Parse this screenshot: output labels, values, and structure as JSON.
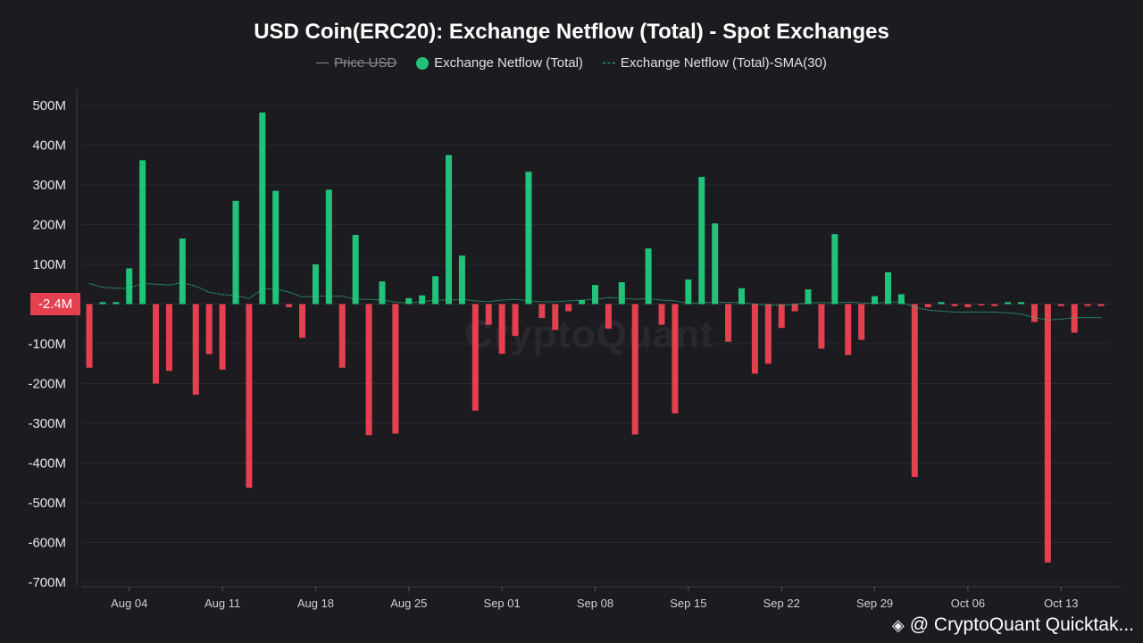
{
  "chart_data": {
    "type": "bar",
    "title": "USD Coin(ERC20): Exchange Netflow (Total) - Spot Exchanges",
    "legend": [
      {
        "name": "Price USD",
        "enabled": false,
        "style": "line",
        "color": "#8c8c8c"
      },
      {
        "name": "Exchange Netflow (Total)",
        "enabled": true,
        "style": "dot",
        "color": "#22c27a"
      },
      {
        "name": "Exchange Netflow (Total)-SMA(30)",
        "enabled": true,
        "style": "dashed-line",
        "color": "#2fbf7f"
      }
    ],
    "ylim": [
      -700,
      500
    ],
    "yunit": "M",
    "y_ticks": [
      "500M",
      "400M",
      "300M",
      "200M",
      "100M",
      "",
      "-100M",
      "-200M",
      "-300M",
      "-400M",
      "-500M",
      "-600M",
      "-700M"
    ],
    "y_tick_values": [
      500,
      400,
      300,
      200,
      100,
      0,
      -100,
      -200,
      -300,
      -400,
      -500,
      -600,
      -700
    ],
    "current_value_label": "-2.4M",
    "x_ticks": [
      {
        "label": "Aug 04",
        "index": 3
      },
      {
        "label": "Aug 11",
        "index": 10
      },
      {
        "label": "Aug 18",
        "index": 17
      },
      {
        "label": "Aug 25",
        "index": 24
      },
      {
        "label": "Sep 01",
        "index": 31
      },
      {
        "label": "Sep 08",
        "index": 38
      },
      {
        "label": "Sep 15",
        "index": 45
      },
      {
        "label": "Sep 22",
        "index": 52
      },
      {
        "label": "Sep 29",
        "index": 59
      },
      {
        "label": "Oct 06",
        "index": 66
      },
      {
        "label": "Oct 13",
        "index": 73
      }
    ],
    "values": [
      -160,
      5,
      5,
      90,
      362,
      -200,
      -168,
      165,
      -228,
      -126,
      -165,
      260,
      -462,
      482,
      285,
      -8,
      -85,
      100,
      288,
      -160,
      174,
      -330,
      57,
      -326,
      15,
      22,
      70,
      375,
      122,
      -268,
      -52,
      -125,
      -80,
      333,
      -35,
      -65,
      -18,
      10,
      48,
      -62,
      55,
      -328,
      140,
      -52,
      -275,
      62,
      320,
      203,
      -95,
      40,
      -175,
      -150,
      -60,
      -18,
      37,
      -112,
      176,
      -128,
      -90,
      20,
      80,
      25,
      -435,
      -8,
      5,
      -5,
      -8,
      -3,
      -5,
      5,
      5,
      -45,
      -650,
      -5,
      -72,
      -5,
      -5
    ],
    "sma": [
      52,
      42,
      40,
      40,
      52,
      50,
      48,
      54,
      45,
      30,
      24,
      22,
      14,
      38,
      38,
      30,
      18,
      20,
      20,
      20,
      12,
      12,
      10,
      5,
      3,
      6,
      10,
      10,
      12,
      8,
      6,
      10,
      12,
      8,
      6,
      6,
      8,
      10,
      12,
      16,
      15,
      12,
      14,
      10,
      8,
      2,
      3,
      5,
      4,
      4,
      0,
      -2,
      -4,
      0,
      3,
      4,
      3,
      5,
      3,
      2,
      5,
      5,
      -8,
      -15,
      -18,
      -20,
      -20,
      -20,
      -20,
      -22,
      -25,
      -34,
      -40,
      -38,
      -34,
      -34,
      -34
    ],
    "colors": {
      "positive": "#22c27a",
      "negative": "#e3414f",
      "sma": "#2fbf7f"
    }
  },
  "watermark": {
    "icon": "binance-square-icon",
    "text": "@ CryptoQuant Quicktak..."
  },
  "background_watermark": "CryptoQuant"
}
